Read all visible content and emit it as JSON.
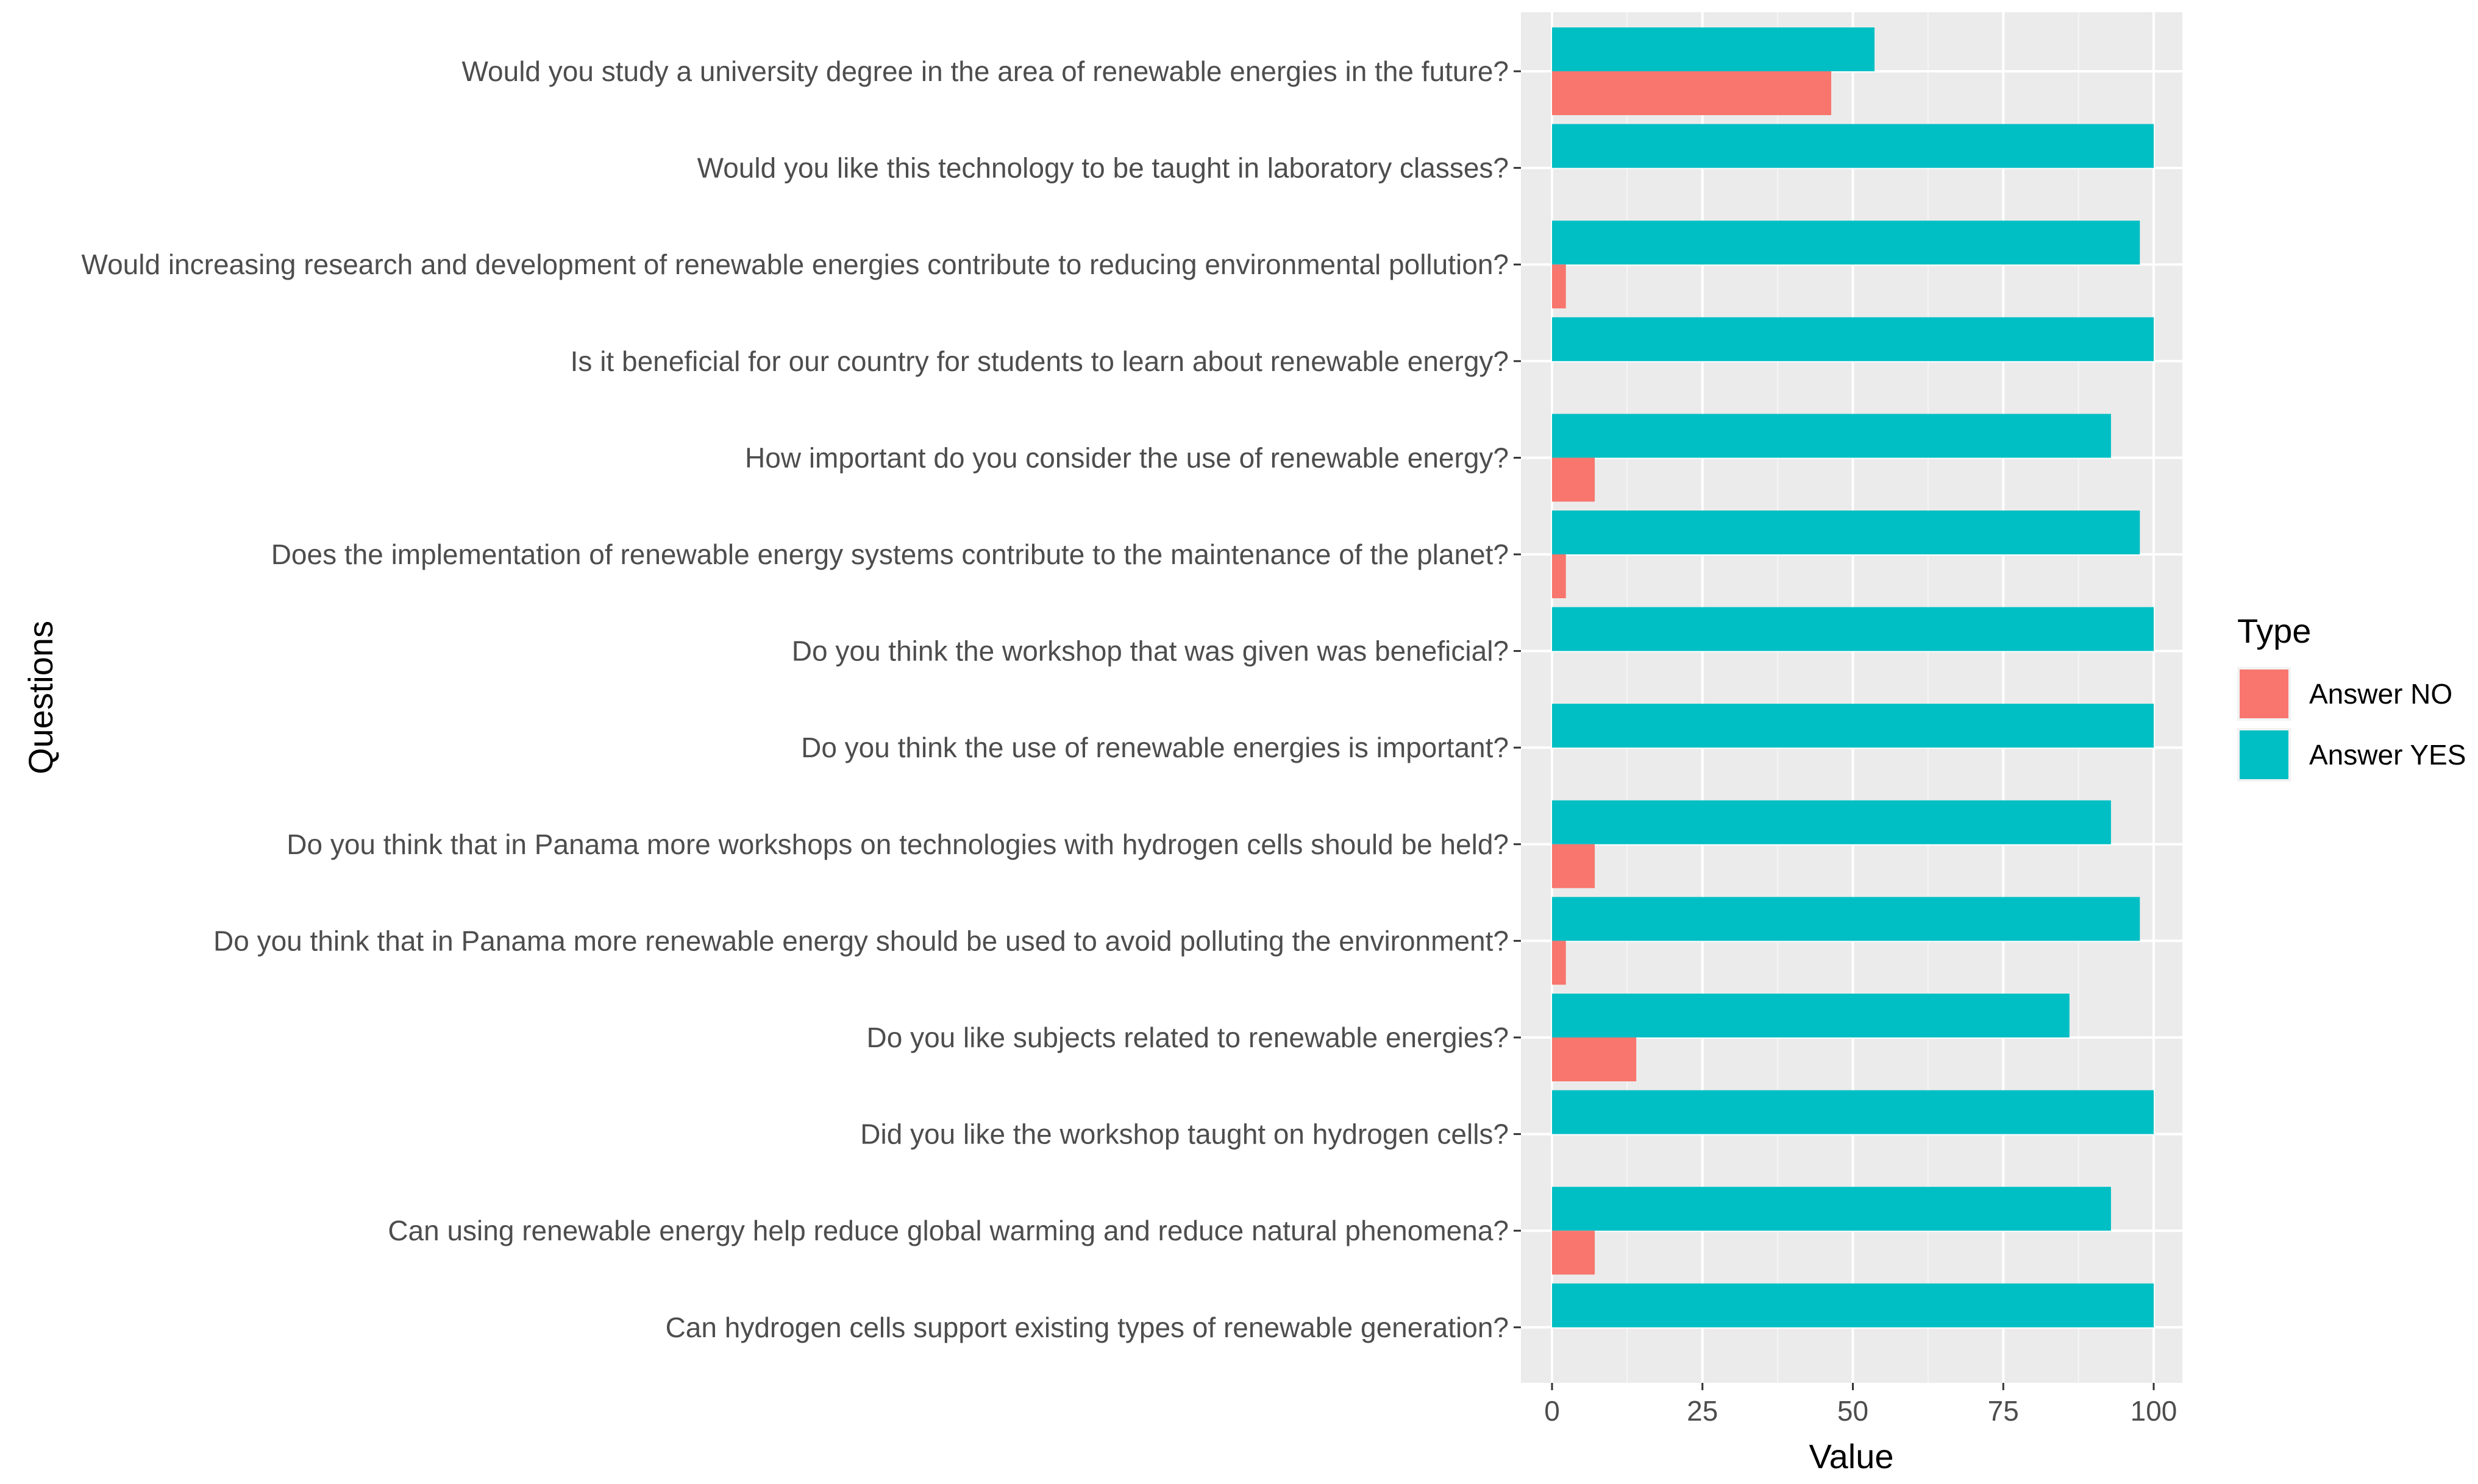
{
  "chart_data": {
    "type": "bar",
    "orientation": "horizontal",
    "xlabel": "Value",
    "ylabel": "Questions",
    "xlim": [
      0,
      100
    ],
    "x_ticks": [
      0,
      25,
      50,
      75,
      100
    ],
    "legend_title": "Type",
    "legend_position": "right",
    "grid": true,
    "categories": [
      "Would you study a university degree in the area of renewable energies in the future?",
      "Would you like this technology to be taught in laboratory classes?",
      "Would increasing research and development of renewable energies contribute to reducing environmental pollution?",
      "Is it beneficial for our country for students to learn about renewable energy?",
      "How important do you consider the use of renewable energy?",
      "Does the implementation of renewable energy systems contribute to the maintenance of the planet?",
      "Do you think the workshop that was given was beneficial?",
      "Do you think the use of renewable energies is important?",
      "Do you think that in Panama more workshops on technologies with hydrogen cells should be held?",
      "Do you think that in Panama more renewable energy should be used to avoid polluting the environment?",
      "Do you like subjects related to renewable energies?",
      "Did you like the workshop taught on hydrogen cells?",
      "Can using renewable energy help reduce global warming and reduce natural phenomena?",
      "Can hydrogen cells support existing types of renewable generation?"
    ],
    "series": [
      {
        "name": "Answer NO",
        "color": "#F8766D",
        "values": [
          46.4,
          0,
          2.3,
          0,
          7.1,
          2.3,
          0,
          0,
          7.1,
          2.3,
          14.0,
          0,
          7.1,
          0
        ]
      },
      {
        "name": "Answer YES",
        "color": "#00BFC4",
        "values": [
          53.6,
          100,
          97.7,
          100,
          92.9,
          97.7,
          100,
          100,
          92.9,
          97.7,
          86.0,
          100,
          92.9,
          100
        ]
      }
    ]
  }
}
